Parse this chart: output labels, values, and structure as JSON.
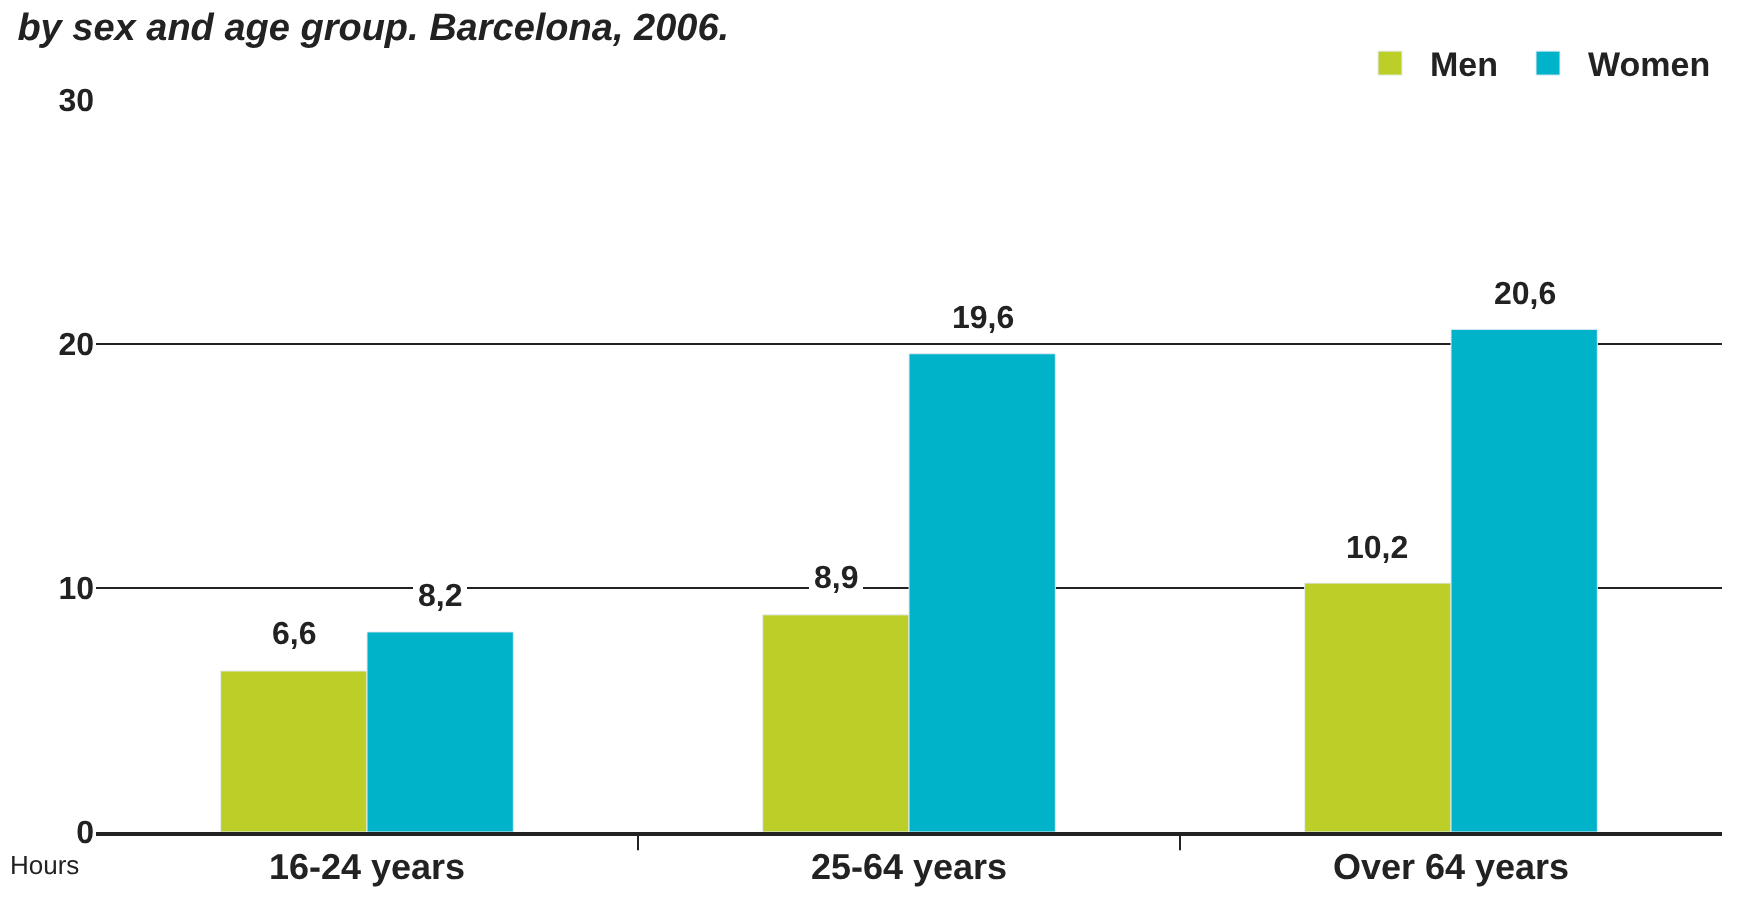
{
  "chart_data": {
    "type": "bar",
    "title": "by sex and age group. Barcelona, 2006.",
    "ylabel": "Hours",
    "categories": [
      "16-24 years",
      "25-64 years",
      "Over 64 years"
    ],
    "series": [
      {
        "name": "Men",
        "color": "#bccf28",
        "values": [
          6.6,
          8.9,
          10.2
        ],
        "value_labels": [
          "6,6",
          "8,9",
          "10,2"
        ]
      },
      {
        "name": "Women",
        "color": "#00b3c9",
        "values": [
          8.2,
          19.6,
          20.6
        ],
        "value_labels": [
          "8,2",
          "19,6",
          "20,6"
        ]
      }
    ],
    "ylim": [
      0,
      30
    ],
    "yticks": [
      0,
      10,
      20,
      30
    ],
    "grid": "y",
    "legend": "top right"
  }
}
